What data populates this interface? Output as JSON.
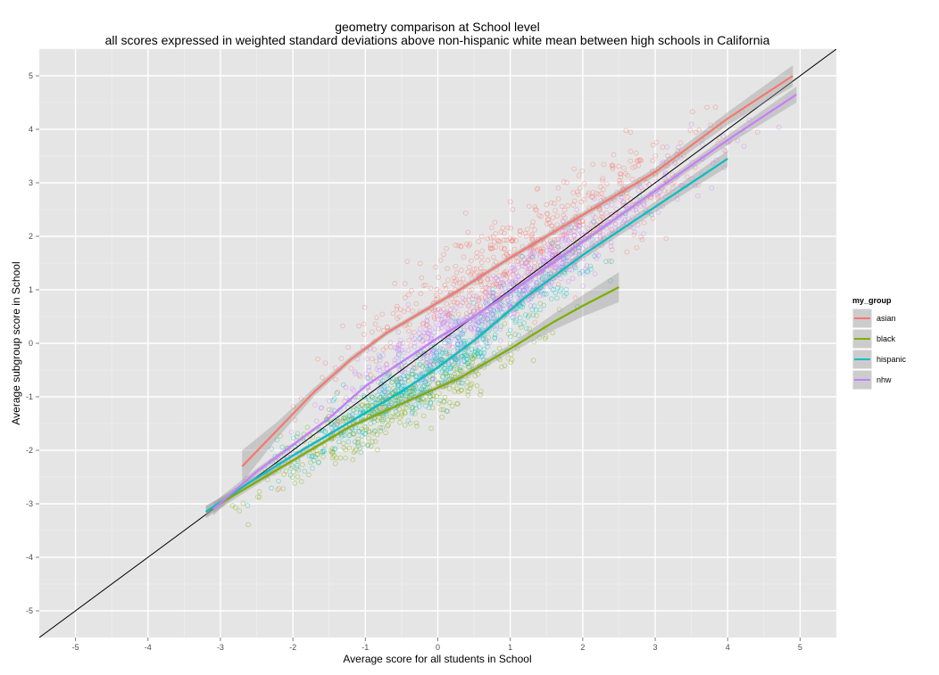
{
  "chart_data": {
    "type": "scatter",
    "title": "geometry comparison at School level",
    "subtitle": "all scores expressed in weighted standard deviations above non-hispanic white mean between high schools in California",
    "xlabel": "Average score for all students in School",
    "ylabel": "Average subgroup score in School",
    "xlim": [
      -5.5,
      5.5
    ],
    "ylim": [
      -5.5,
      5.5
    ],
    "x_ticks": [
      -5,
      -4,
      -3,
      -2,
      -1,
      0,
      1,
      2,
      3,
      4,
      5
    ],
    "y_ticks": [
      -5,
      -4,
      -3,
      -2,
      -1,
      0,
      1,
      2,
      3,
      4,
      5
    ],
    "grid": true,
    "panel_background": "#e5e5e5",
    "reference_line": {
      "type": "identity",
      "slope": 1,
      "intercept": 0,
      "color": "#000000"
    },
    "legend": {
      "title": "my_group",
      "position": "right",
      "entries": [
        "asian",
        "black",
        "hispanic",
        "nhw"
      ]
    },
    "series": [
      {
        "name": "asian",
        "color": "#f8766d",
        "smooth": {
          "x": [
            -2.7,
            -2.2,
            -1.7,
            -1.2,
            -0.7,
            -0.2,
            0.3,
            1.0,
            2.0,
            3.0,
            4.0,
            4.9
          ],
          "y": [
            -2.3,
            -1.6,
            -0.9,
            -0.3,
            0.2,
            0.6,
            1.0,
            1.6,
            2.4,
            3.2,
            4.2,
            5.0
          ]
        },
        "band_width": [
          0.3,
          0.15,
          0.08,
          0.06,
          0.05,
          0.05,
          0.05,
          0.05,
          0.06,
          0.08,
          0.12,
          0.2
        ],
        "points": {
          "x_range": [
            -2.6,
            5.0
          ],
          "count": 620,
          "residual_sd": 0.45
        }
      },
      {
        "name": "black",
        "color": "#7cae00",
        "smooth": {
          "x": [
            -3.2,
            -2.7,
            -2.2,
            -1.7,
            -1.2,
            -0.7,
            -0.2,
            0.3,
            1.0,
            1.6,
            2.0,
            2.5
          ],
          "y": [
            -3.15,
            -2.75,
            -2.35,
            -1.95,
            -1.55,
            -1.25,
            -0.95,
            -0.65,
            -0.1,
            0.4,
            0.7,
            1.05
          ]
        },
        "band_width": [
          0.12,
          0.07,
          0.05,
          0.04,
          0.04,
          0.04,
          0.05,
          0.06,
          0.08,
          0.15,
          0.2,
          0.28
        ],
        "points": {
          "x_range": [
            -3.1,
            2.0
          ],
          "count": 420,
          "residual_sd": 0.3
        }
      },
      {
        "name": "hispanic",
        "color": "#00bfc4",
        "smooth": {
          "x": [
            -3.2,
            -2.6,
            -2.0,
            -1.5,
            -1.0,
            -0.5,
            0.0,
            0.5,
            1.2,
            2.0,
            3.0,
            4.0
          ],
          "y": [
            -3.15,
            -2.6,
            -2.1,
            -1.7,
            -1.3,
            -0.9,
            -0.45,
            0.05,
            0.85,
            1.65,
            2.55,
            3.45
          ]
        },
        "band_width": [
          0.1,
          0.06,
          0.04,
          0.03,
          0.03,
          0.03,
          0.04,
          0.05,
          0.06,
          0.08,
          0.1,
          0.15
        ],
        "points": {
          "x_range": [
            -3.1,
            3.2
          ],
          "count": 650,
          "residual_sd": 0.28
        }
      },
      {
        "name": "nhw",
        "color": "#c77cff",
        "smooth": {
          "x": [
            -3.1,
            -2.5,
            -2.0,
            -1.5,
            -1.0,
            -0.5,
            0.0,
            0.5,
            1.0,
            2.0,
            3.0,
            4.0,
            4.95
          ],
          "y": [
            -3.1,
            -2.4,
            -1.9,
            -1.4,
            -0.8,
            -0.35,
            0.1,
            0.5,
            0.95,
            1.9,
            2.85,
            3.8,
            4.65
          ]
        },
        "band_width": [
          0.12,
          0.06,
          0.04,
          0.03,
          0.03,
          0.03,
          0.03,
          0.04,
          0.04,
          0.05,
          0.06,
          0.09,
          0.15
        ],
        "points": {
          "x_range": [
            -2.8,
            4.9
          ],
          "count": 700,
          "residual_sd": 0.28
        }
      }
    ]
  }
}
